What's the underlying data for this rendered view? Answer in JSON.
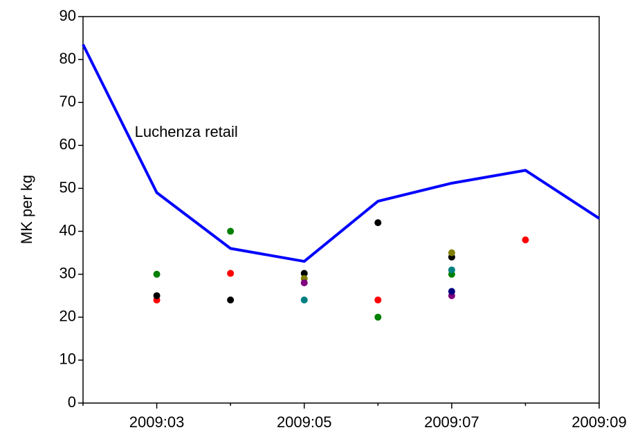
{
  "chart_data": {
    "type": "line",
    "y_label": "MK per kg",
    "categories": [
      null,
      "2009:03",
      null,
      "2009:05",
      null,
      "2009:07",
      null,
      "2009:09"
    ],
    "ylim": [
      0,
      90
    ],
    "yticks": [
      0,
      10,
      20,
      30,
      40,
      50,
      60,
      70,
      80,
      90
    ],
    "grid": false,
    "series": [
      {
        "name": "Luchenza retail",
        "type": "line",
        "color": "#0000ff",
        "values": [
          83.5,
          49,
          36,
          33,
          47,
          51.2,
          54.2,
          43
        ]
      },
      {
        "type": "scatter",
        "color": "#ff0000",
        "values": [
          null,
          24,
          30.2,
          null,
          24,
          null,
          38,
          null
        ]
      },
      {
        "type": "scatter",
        "color": "#008000",
        "values": [
          null,
          30,
          40,
          null,
          20,
          30,
          null,
          null
        ]
      },
      {
        "type": "scatter",
        "color": "#000000",
        "values": [
          null,
          25,
          24,
          30.2,
          42,
          34,
          null,
          null
        ]
      },
      {
        "type": "scatter",
        "color": "#808000",
        "values": [
          null,
          null,
          null,
          29,
          null,
          35,
          null,
          null
        ]
      },
      {
        "type": "scatter",
        "color": "#800080",
        "values": [
          null,
          null,
          null,
          28,
          null,
          25,
          null,
          null
        ]
      },
      {
        "type": "scatter",
        "color": "#008080",
        "values": [
          null,
          null,
          null,
          24,
          null,
          31,
          null,
          null
        ]
      },
      {
        "type": "scatter",
        "color": "#000080",
        "values": [
          null,
          null,
          null,
          null,
          null,
          26,
          null,
          null
        ]
      }
    ]
  }
}
